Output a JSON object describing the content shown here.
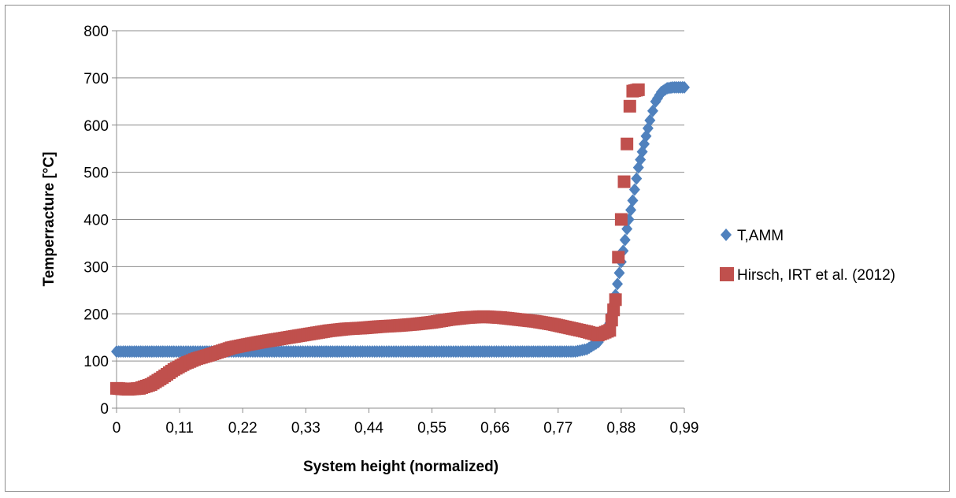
{
  "chart_data": {
    "type": "scatter",
    "title": "",
    "xlabel": "System height (normalized)",
    "ylabel": "Temperracture [°C]",
    "xlim": [
      0,
      0.99
    ],
    "ylim": [
      0,
      800
    ],
    "x_tick_labels": [
      "0",
      "0,11",
      "0,22",
      "0,33",
      "0,44",
      "0,55",
      "0,66",
      "0,77",
      "0,88",
      "0,99"
    ],
    "y_tick_labels": [
      "0",
      "100",
      "200",
      "300",
      "400",
      "500",
      "600",
      "700",
      "800"
    ],
    "grid": "horizontal major gridlines",
    "legend_position": "right",
    "series": [
      {
        "name": "T,AMM",
        "marker": "diamond",
        "color": "#4f81bd",
        "points": [
          [
            0.0,
            120
          ],
          [
            0.05,
            120
          ],
          [
            0.1,
            120
          ],
          [
            0.15,
            120
          ],
          [
            0.2,
            120
          ],
          [
            0.25,
            120
          ],
          [
            0.3,
            120
          ],
          [
            0.35,
            120
          ],
          [
            0.4,
            120
          ],
          [
            0.45,
            120
          ],
          [
            0.5,
            120
          ],
          [
            0.55,
            120
          ],
          [
            0.6,
            120
          ],
          [
            0.65,
            120
          ],
          [
            0.7,
            120
          ],
          [
            0.75,
            120
          ],
          [
            0.8,
            120
          ],
          [
            0.82,
            125
          ],
          [
            0.84,
            140
          ],
          [
            0.86,
            180
          ],
          [
            0.87,
            240
          ],
          [
            0.88,
            310
          ],
          [
            0.89,
            380
          ],
          [
            0.9,
            440
          ],
          [
            0.91,
            510
          ],
          [
            0.92,
            560
          ],
          [
            0.93,
            610
          ],
          [
            0.94,
            650
          ],
          [
            0.95,
            670
          ],
          [
            0.96,
            678
          ],
          [
            0.97,
            680
          ],
          [
            0.98,
            680
          ],
          [
            0.99,
            680
          ]
        ]
      },
      {
        "name": "Hirsch, IRT et al. (2012)",
        "marker": "square",
        "color": "#c0504d",
        "points": [
          [
            0.0,
            42
          ],
          [
            0.02,
            40
          ],
          [
            0.04,
            42
          ],
          [
            0.06,
            50
          ],
          [
            0.08,
            65
          ],
          [
            0.1,
            82
          ],
          [
            0.12,
            95
          ],
          [
            0.14,
            105
          ],
          [
            0.16,
            112
          ],
          [
            0.18,
            120
          ],
          [
            0.2,
            128
          ],
          [
            0.22,
            133
          ],
          [
            0.25,
            140
          ],
          [
            0.28,
            146
          ],
          [
            0.31,
            152
          ],
          [
            0.34,
            158
          ],
          [
            0.37,
            164
          ],
          [
            0.4,
            168
          ],
          [
            0.43,
            170
          ],
          [
            0.46,
            173
          ],
          [
            0.49,
            175
          ],
          [
            0.52,
            178
          ],
          [
            0.55,
            182
          ],
          [
            0.58,
            188
          ],
          [
            0.61,
            192
          ],
          [
            0.64,
            194
          ],
          [
            0.67,
            192
          ],
          [
            0.7,
            188
          ],
          [
            0.73,
            184
          ],
          [
            0.76,
            178
          ],
          [
            0.79,
            170
          ],
          [
            0.82,
            162
          ],
          [
            0.84,
            155
          ],
          [
            0.86,
            165
          ],
          [
            0.87,
            230
          ],
          [
            0.875,
            320
          ],
          [
            0.88,
            400
          ],
          [
            0.885,
            480
          ],
          [
            0.89,
            560
          ],
          [
            0.895,
            640
          ],
          [
            0.9,
            672
          ],
          [
            0.91,
            675
          ]
        ]
      }
    ]
  },
  "colors": {
    "gridline": "#8c8c8c",
    "axis": "#8c8c8c",
    "frame": "#8c8c8c"
  }
}
